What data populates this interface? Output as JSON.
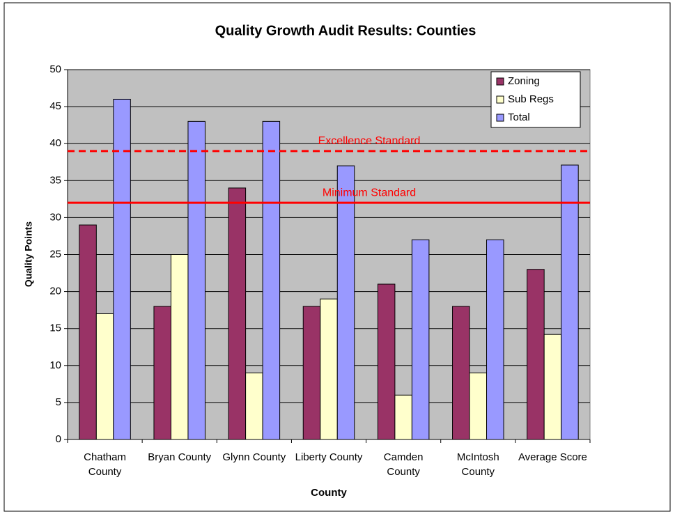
{
  "chart_data": {
    "type": "bar",
    "title": "Quality Growth Audit Results:  Counties",
    "x_label": "County",
    "y_label": "Quality Points",
    "categories": [
      "Chatham County",
      "Bryan County",
      "Glynn County",
      "Liberty County",
      "Camden County",
      "McIntosh County",
      "Average Score"
    ],
    "series": [
      {
        "name": "Zoning",
        "color": "#993366",
        "values": [
          29,
          18,
          34,
          18,
          21,
          18,
          23
        ]
      },
      {
        "name": "Sub Regs",
        "color": "#ffffcc",
        "values": [
          17,
          25,
          9,
          19,
          6,
          9,
          14.2
        ]
      },
      {
        "name": "Total",
        "color": "#9999ff",
        "values": [
          46,
          43,
          43,
          37,
          27,
          27,
          37.1
        ]
      }
    ],
    "reference_lines": [
      {
        "label": "Excellence Standard",
        "value": 39,
        "color": "#ff0000",
        "style": "dashed"
      },
      {
        "label": "Minimum Standard",
        "value": 32,
        "color": "#ff0000",
        "style": "solid"
      }
    ],
    "ylim": [
      0,
      50
    ],
    "yticks": [
      0,
      5,
      10,
      15,
      20,
      25,
      30,
      35,
      40,
      45,
      50
    ],
    "grid": true,
    "legend": "upper right",
    "plot_background": "#c0c0c0"
  }
}
